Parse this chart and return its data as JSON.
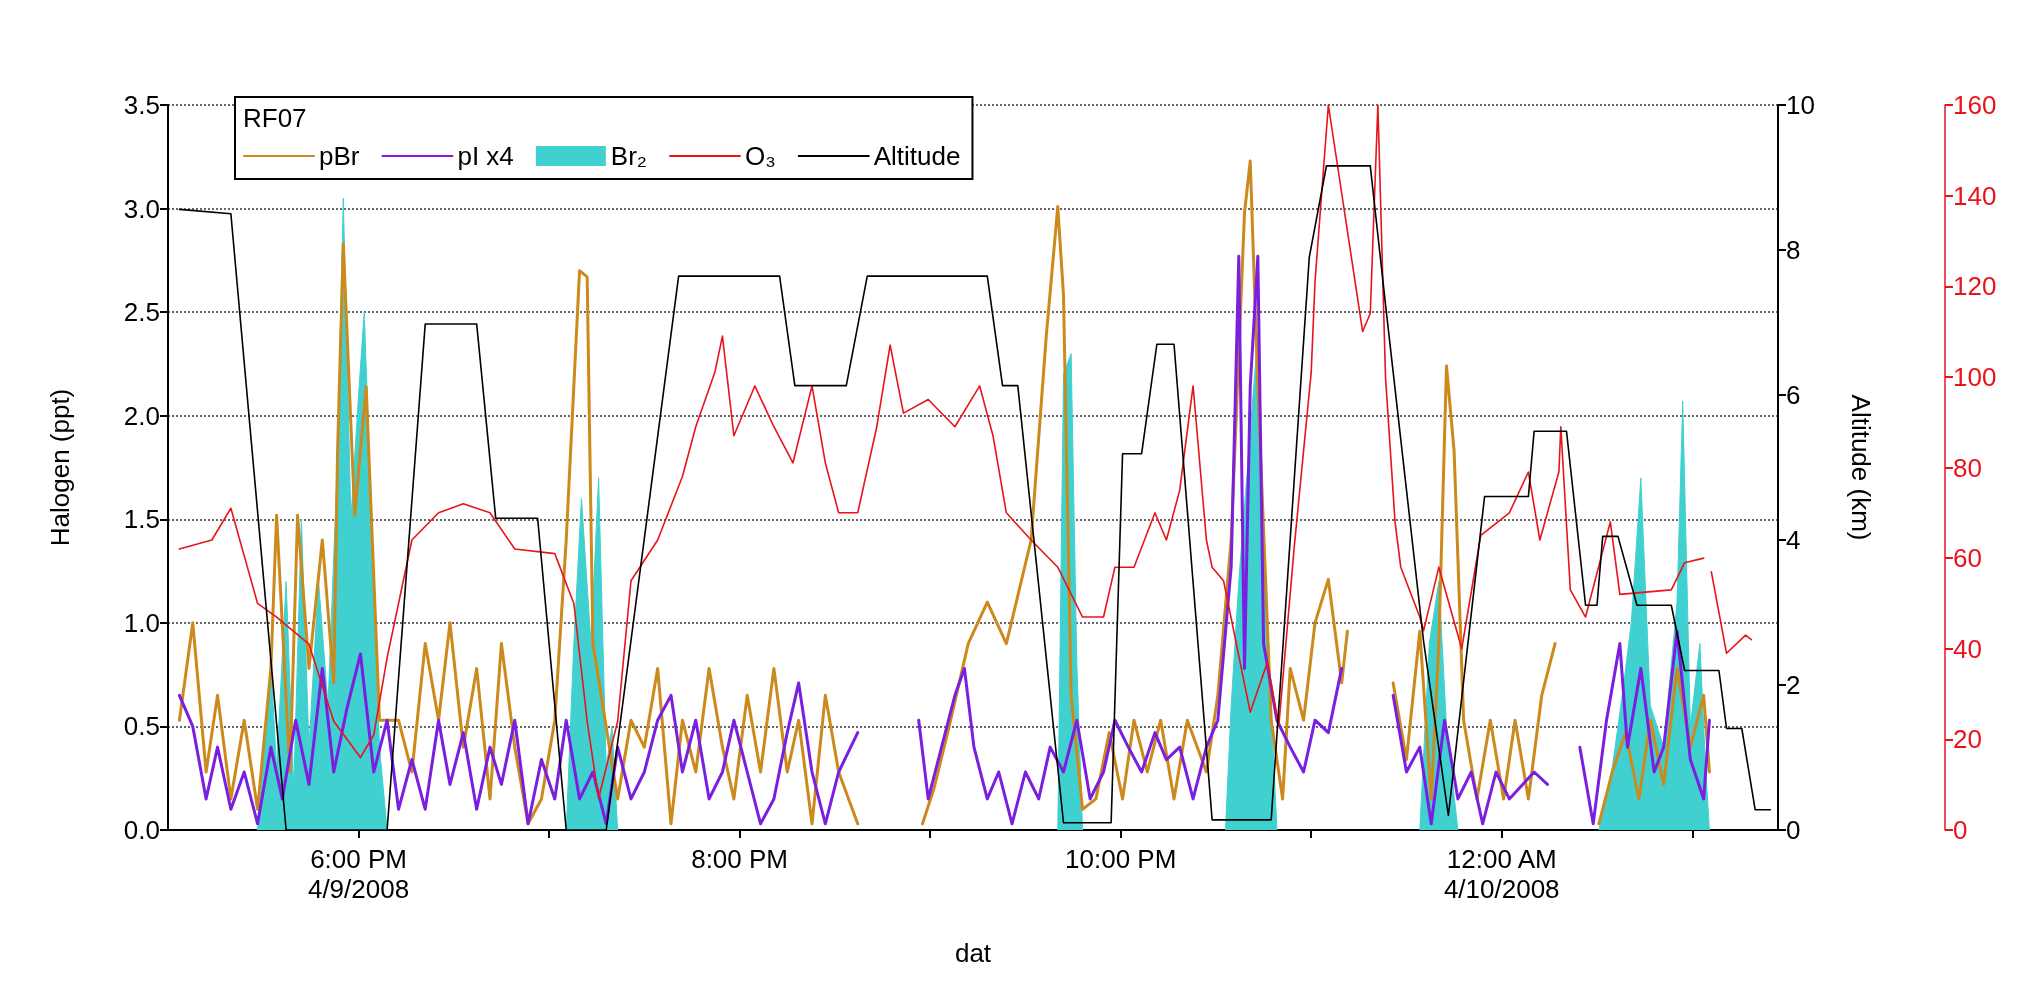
{
  "chart_data": {
    "type": "line",
    "xlabel": "dat",
    "ylabel": "Halogen (ppt)",
    "y2label": "Altitude (km)",
    "legend_title": "RF07",
    "legend": "top left",
    "grid": "y",
    "marker": "none",
    "line_style": "solid",
    "xlim": [
      17,
      25.45
    ],
    "xticks": [
      {
        "value": 18,
        "label": "6:00 PM\n4/9/2008"
      },
      {
        "value": 19,
        "label": null
      },
      {
        "value": 20,
        "label": "8:00 PM"
      },
      {
        "value": 21,
        "label": null
      },
      {
        "value": 22,
        "label": "10:00 PM"
      },
      {
        "value": 23,
        "label": null
      },
      {
        "value": 24,
        "label": "12:00 AM\n4/10/2008"
      },
      {
        "value": 25,
        "label": null
      }
    ],
    "ylim": [
      0,
      3.5
    ],
    "yticks": [
      {
        "value": 0,
        "label": "0.0"
      },
      0.5,
      {
        "value": 1,
        "label": "1.0"
      },
      1.5,
      {
        "value": 2,
        "label": "2.0"
      },
      2.5,
      {
        "value": 3,
        "label": "3.0"
      },
      3.5
    ],
    "y2lim": [
      0,
      10
    ],
    "y2ticks": [
      0,
      2,
      4,
      6,
      8,
      10
    ],
    "y3lim": [
      0,
      160
    ],
    "y3ticks": [
      0,
      20,
      40,
      60,
      80,
      100,
      120,
      140,
      160
    ],
    "series": [
      {
        "name": "pBr",
        "type": "line",
        "color": "#cc8a1c",
        "x": [
          17.06,
          17.13,
          17.2,
          17.26,
          17.33,
          17.4,
          17.47,
          17.54,
          17.57,
          17.64,
          17.68,
          17.74,
          17.81,
          17.87,
          17.89,
          17.92,
          17.98,
          18.04,
          18.11,
          18.21,
          18.28,
          18.35,
          18.42,
          18.48,
          18.55,
          18.62,
          18.69,
          18.75,
          18.82,
          18.89,
          18.96,
          19.03,
          19.09,
          19.16,
          19.2,
          19.23,
          19.36,
          19.43,
          19.5,
          19.57,
          19.64,
          19.7,
          19.77,
          19.84,
          19.91,
          19.97,
          20.04,
          20.11,
          20.18,
          20.25,
          20.31,
          20.38,
          20.45,
          20.52,
          20.62,
          20.75,
          20.96,
          21.02,
          21.1,
          21.2,
          21.3,
          21.4,
          21.53,
          21.61,
          21.67,
          21.7,
          21.74,
          21.8,
          21.87,
          21.94,
          22.01,
          22.07,
          22.14,
          22.21,
          22.28,
          22.35,
          22.45,
          22.51,
          22.58,
          22.65,
          22.68,
          22.72,
          22.79,
          22.85,
          22.89,
          22.96,
          23.02,
          23.09,
          23.16,
          23.19,
          23.3,
          23.43,
          23.5,
          23.57,
          23.63,
          23.67,
          23.71,
          23.75,
          23.8,
          23.87,
          23.94,
          24.01,
          24.07,
          24.14,
          24.21,
          24.28,
          24.4,
          24.51,
          24.58,
          24.65,
          24.72,
          24.78,
          24.85,
          24.92,
          24.99,
          25.06,
          25.09
        ],
        "values": [
          0.53,
          1.0,
          0.28,
          0.65,
          0.15,
          0.53,
          0.1,
          0.78,
          1.52,
          0.28,
          1.52,
          0.78,
          1.4,
          0.71,
          1.83,
          2.83,
          1.52,
          2.14,
          0.53,
          0.53,
          0.28,
          0.9,
          0.53,
          1.0,
          0.4,
          0.78,
          0.15,
          0.9,
          0.4,
          0.03,
          0.15,
          0.53,
          1.4,
          2.7,
          2.67,
          0.9,
          0.15,
          0.53,
          0.4,
          0.78,
          0.03,
          0.53,
          0.28,
          0.78,
          0.4,
          0.15,
          0.65,
          0.28,
          0.78,
          0.28,
          0.53,
          0.03,
          0.65,
          0.28,
          0.03,
          null,
          0.03,
          0.2,
          0.5,
          0.9,
          1.1,
          0.9,
          1.4,
          2.39,
          3.01,
          2.58,
          0.65,
          0.1,
          0.15,
          0.47,
          0.15,
          0.53,
          0.28,
          0.53,
          0.15,
          0.53,
          0.28,
          0.65,
          1.4,
          2.98,
          3.23,
          2.14,
          0.53,
          0.15,
          0.78,
          0.53,
          1.0,
          1.21,
          0.71,
          0.96,
          null,
          0.71,
          0.34,
          0.96,
          0.15,
          0.9,
          2.24,
          1.83,
          0.53,
          0.15,
          0.53,
          0.15,
          0.53,
          0.15,
          0.65,
          0.9,
          null,
          0.03,
          0.28,
          0.47,
          0.15,
          0.53,
          0.22,
          0.78,
          0.4,
          0.65,
          0.28
        ]
      },
      {
        "name": "pI x4",
        "type": "line",
        "color": "#7a1fe0",
        "x": [
          17.06,
          17.13,
          17.2,
          17.26,
          17.33,
          17.4,
          17.47,
          17.54,
          17.6,
          17.67,
          17.74,
          17.81,
          17.87,
          17.94,
          18.01,
          18.08,
          18.15,
          18.21,
          18.28,
          18.35,
          18.42,
          18.48,
          18.55,
          18.62,
          18.69,
          18.75,
          18.82,
          18.89,
          18.96,
          19.03,
          19.09,
          19.16,
          19.23,
          19.3,
          19.36,
          19.43,
          19.5,
          19.57,
          19.64,
          19.7,
          19.77,
          19.84,
          19.91,
          19.97,
          20.04,
          20.11,
          20.18,
          20.25,
          20.31,
          20.38,
          20.45,
          20.52,
          20.62,
          20.8,
          20.94,
          20.99,
          21.06,
          21.13,
          21.18,
          21.23,
          21.3,
          21.36,
          21.43,
          21.5,
          21.57,
          21.63,
          21.7,
          21.77,
          21.84,
          21.91,
          21.97,
          22.04,
          22.11,
          22.18,
          22.24,
          22.31,
          22.38,
          22.45,
          22.51,
          22.58,
          22.62,
          22.65,
          22.68,
          22.72,
          22.75,
          22.82,
          22.89,
          22.96,
          23.02,
          23.09,
          23.16,
          23.3,
          23.43,
          23.5,
          23.57,
          23.63,
          23.7,
          23.77,
          23.84,
          23.9,
          23.97,
          24.04,
          24.11,
          24.17,
          24.24,
          24.33,
          24.41,
          24.48,
          24.55,
          24.62,
          24.66,
          24.73,
          24.8,
          24.85,
          24.92,
          24.99,
          25.06,
          25.09
        ],
        "values": [
          0.65,
          0.5,
          0.15,
          0.4,
          0.1,
          0.28,
          0.03,
          0.4,
          0.15,
          0.53,
          0.22,
          0.78,
          0.28,
          0.59,
          0.85,
          0.28,
          0.53,
          0.1,
          0.34,
          0.1,
          0.53,
          0.22,
          0.47,
          0.1,
          0.4,
          0.22,
          0.53,
          0.03,
          0.34,
          0.15,
          0.53,
          0.15,
          0.28,
          0.03,
          0.4,
          0.15,
          0.28,
          0.53,
          0.65,
          0.28,
          0.53,
          0.15,
          0.28,
          0.53,
          0.28,
          0.03,
          0.15,
          0.47,
          0.71,
          0.28,
          0.03,
          0.28,
          0.47,
          null,
          0.53,
          0.15,
          0.4,
          0.65,
          0.78,
          0.4,
          0.15,
          0.28,
          0.03,
          0.28,
          0.15,
          0.4,
          0.28,
          0.53,
          0.15,
          0.28,
          0.53,
          0.4,
          0.28,
          0.47,
          0.34,
          0.4,
          0.15,
          0.4,
          0.53,
          1.27,
          2.77,
          0.78,
          2.14,
          2.77,
          0.9,
          0.53,
          0.4,
          0.28,
          0.53,
          0.47,
          0.78,
          null,
          0.65,
          0.28,
          0.4,
          0.03,
          0.53,
          0.15,
          0.28,
          0.03,
          0.28,
          0.15,
          0.22,
          0.28,
          0.22,
          null,
          0.4,
          0.03,
          0.53,
          0.9,
          0.4,
          0.78,
          0.28,
          0.4,
          0.96,
          0.34,
          0.15,
          0.53
        ]
      },
      {
        "name": "Br₂",
        "type": "area",
        "color": "#40d0d0",
        "x": [
          17.47,
          17.54,
          17.57,
          17.62,
          17.66,
          17.7,
          17.74,
          17.79,
          17.84,
          17.89,
          17.92,
          17.96,
          18.0,
          18.03,
          18.08,
          18.11,
          18.15,
          18.6,
          19.09,
          19.13,
          19.17,
          19.22,
          19.26,
          19.3,
          19.33,
          19.36,
          20.5,
          21.67,
          21.7,
          21.74,
          21.77,
          21.8,
          22.2,
          22.55,
          22.58,
          22.62,
          22.67,
          22.72,
          22.75,
          22.79,
          22.82,
          23.2,
          23.57,
          23.62,
          23.67,
          23.71,
          23.77,
          24.2,
          24.51,
          24.58,
          24.64,
          24.68,
          24.73,
          24.78,
          24.85,
          24.92,
          24.95,
          24.99,
          25.04,
          25.07,
          25.09
        ],
        "values": [
          0,
          0.8,
          0.3,
          1.2,
          0.2,
          1.5,
          0.4,
          1.2,
          0.6,
          1.8,
          3.05,
          1.5,
          2.1,
          2.5,
          1.2,
          0.4,
          0,
          null,
          0,
          0.9,
          1.6,
          0.9,
          1.7,
          0.3,
          0.5,
          0,
          null,
          0,
          2.2,
          2.3,
          0.8,
          0,
          null,
          0,
          0.6,
          1.2,
          1.8,
          2.4,
          1.4,
          0.6,
          0,
          null,
          0,
          0.9,
          1.2,
          0.5,
          0,
          null,
          0,
          0.3,
          0.7,
          1.0,
          1.7,
          0.6,
          0.4,
          1.1,
          2.07,
          0.5,
          0.9,
          0.3,
          0
        ]
      },
      {
        "name": "O₃",
        "type": "line",
        "color": "#e8141c",
        "axis": "y3",
        "x": [
          17.06,
          17.23,
          17.33,
          17.47,
          17.57,
          17.74,
          17.87,
          18.01,
          18.08,
          18.15,
          18.28,
          18.42,
          18.55,
          18.69,
          18.82,
          19.03,
          19.13,
          19.2,
          19.26,
          19.36,
          19.43,
          19.57,
          19.7,
          19.77,
          19.87,
          19.91,
          19.97,
          20.08,
          20.18,
          20.28,
          20.38,
          20.45,
          20.52,
          20.62,
          20.72,
          20.79,
          20.86,
          20.99,
          21.13,
          21.26,
          21.33,
          21.4,
          21.53,
          21.67,
          21.8,
          21.91,
          21.97,
          22.07,
          22.18,
          22.24,
          22.31,
          22.38,
          22.45,
          22.48,
          22.54,
          22.68,
          22.77,
          22.83,
          22.91,
          23.0,
          23.02,
          23.09,
          23.27,
          23.31,
          23.35,
          23.39,
          23.44,
          23.47,
          23.57,
          23.59,
          23.67,
          23.79,
          23.89,
          24.04,
          24.14,
          24.2,
          24.3,
          24.31,
          24.36,
          24.44,
          24.57,
          24.62,
          24.89,
          24.96,
          25.06,
          25.08,
          25.1,
          25.18,
          25.28,
          25.31
        ],
        "values": [
          62,
          64,
          71,
          50,
          47,
          41,
          24,
          16,
          21,
          38,
          64,
          70,
          72,
          70,
          62,
          61,
          50,
          24,
          7,
          24,
          55,
          64,
          78,
          89,
          101,
          109,
          87,
          98,
          89,
          81,
          98,
          81,
          70,
          70,
          89,
          107,
          92,
          95,
          89,
          98,
          87,
          70,
          64,
          58,
          47,
          47,
          58,
          58,
          70,
          64,
          75,
          98,
          64,
          58,
          55,
          26,
          37,
          23,
          62,
          101,
          121,
          160,
          110,
          114,
          160,
          100,
          68,
          58,
          47,
          44,
          58,
          40,
          65,
          70,
          79,
          64,
          79,
          89,
          53,
          47,
          68,
          52,
          53,
          59,
          60,
          null,
          57,
          39,
          43,
          42
        ]
      },
      {
        "name": "Altitude",
        "type": "line",
        "color": "#000000",
        "axis": "y2",
        "x": [
          17.06,
          17.33,
          17.62,
          18.15,
          18.35,
          18.62,
          18.72,
          18.94,
          19.09,
          19.3,
          19.68,
          20.21,
          20.29,
          20.56,
          20.67,
          21.3,
          21.38,
          21.46,
          21.7,
          21.95,
          22.01,
          22.11,
          22.19,
          22.28,
          22.48,
          22.79,
          22.99,
          23.08,
          23.31,
          23.39,
          23.59,
          23.72,
          23.91,
          24.14,
          24.17,
          24.34,
          24.44,
          24.5,
          24.53,
          24.61,
          24.71,
          24.89,
          24.96,
          25.14,
          25.18,
          25.26,
          25.33,
          25.41
        ],
        "values": [
          8.56,
          8.5,
          0,
          0,
          6.98,
          6.98,
          4.3,
          4.3,
          0,
          0,
          7.64,
          7.64,
          6.13,
          6.13,
          7.64,
          7.64,
          6.13,
          6.13,
          0.1,
          0.1,
          5.19,
          5.19,
          6.7,
          6.7,
          0.14,
          0.14,
          7.9,
          9.16,
          9.16,
          7.25,
          2.6,
          0.2,
          4.6,
          4.6,
          5.5,
          5.5,
          3.1,
          3.1,
          4.05,
          4.05,
          3.1,
          3.1,
          2.2,
          2.2,
          1.4,
          1.4,
          0.28,
          0.28
        ]
      }
    ]
  }
}
